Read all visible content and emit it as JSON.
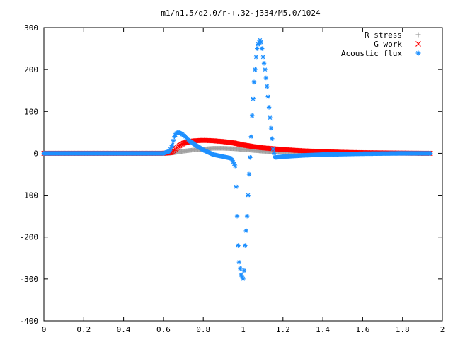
{
  "chart_data": {
    "type": "scatter",
    "title": "m1/n1.5/q2.0/r-+.32-j334/M5.0/1024",
    "xlabel": "",
    "ylabel": "",
    "xlim": [
      0,
      2
    ],
    "ylim": [
      -400,
      300
    ],
    "xticks": [
      "0",
      "0.2",
      "0.4",
      "0.6",
      "0.8",
      "1",
      "1.2",
      "1.4",
      "1.6",
      "1.8",
      "2"
    ],
    "yticks": [
      "-400",
      "-300",
      "-200",
      "-100",
      "0",
      "100",
      "200",
      "300"
    ],
    "grid": false,
    "legend": "top-right",
    "series": [
      {
        "name": "R stress",
        "marker": "plus",
        "color": "#a0a0a0",
        "points": [
          [
            0,
            0
          ],
          [
            0.2,
            0
          ],
          [
            0.4,
            0
          ],
          [
            0.6,
            0
          ],
          [
            0.63,
            0
          ],
          [
            0.66,
            2
          ],
          [
            0.7,
            5
          ],
          [
            0.75,
            8
          ],
          [
            0.8,
            10
          ],
          [
            0.85,
            12
          ],
          [
            0.9,
            12
          ],
          [
            0.95,
            11
          ],
          [
            1.0,
            9
          ],
          [
            1.05,
            7
          ],
          [
            1.1,
            5
          ],
          [
            1.2,
            3
          ],
          [
            1.3,
            2
          ],
          [
            1.4,
            1
          ],
          [
            1.6,
            0.5
          ],
          [
            1.8,
            0.2
          ],
          [
            1.94,
            0
          ]
        ]
      },
      {
        "name": "G work",
        "marker": "cross",
        "color": "#ff0000",
        "points": [
          [
            0,
            0
          ],
          [
            0.2,
            0
          ],
          [
            0.4,
            0
          ],
          [
            0.6,
            0
          ],
          [
            0.64,
            2
          ],
          [
            0.66,
            10
          ],
          [
            0.68,
            18
          ],
          [
            0.7,
            24
          ],
          [
            0.73,
            28
          ],
          [
            0.76,
            30
          ],
          [
            0.8,
            31
          ],
          [
            0.85,
            30
          ],
          [
            0.9,
            28
          ],
          [
            0.95,
            25
          ],
          [
            1.0,
            20
          ],
          [
            1.05,
            16
          ],
          [
            1.1,
            13
          ],
          [
            1.2,
            9
          ],
          [
            1.3,
            6
          ],
          [
            1.4,
            4
          ],
          [
            1.5,
            2.5
          ],
          [
            1.6,
            1.5
          ],
          [
            1.8,
            0.5
          ],
          [
            1.94,
            0
          ]
        ]
      },
      {
        "name": "Acoustic flux",
        "marker": "star",
        "color": "#1e90ff",
        "points": [
          [
            0,
            0
          ],
          [
            0.2,
            0
          ],
          [
            0.4,
            0
          ],
          [
            0.6,
            0
          ],
          [
            0.63,
            5
          ],
          [
            0.645,
            20
          ],
          [
            0.655,
            40
          ],
          [
            0.665,
            48
          ],
          [
            0.675,
            50
          ],
          [
            0.69,
            47
          ],
          [
            0.71,
            40
          ],
          [
            0.73,
            30
          ],
          [
            0.76,
            20
          ],
          [
            0.8,
            8
          ],
          [
            0.85,
            -3
          ],
          [
            0.9,
            -8
          ],
          [
            0.94,
            -12
          ],
          [
            0.96,
            -30
          ],
          [
            0.965,
            -80
          ],
          [
            0.97,
            -150
          ],
          [
            0.975,
            -220
          ],
          [
            0.98,
            -260
          ],
          [
            0.99,
            -290
          ],
          [
            1.0,
            -300
          ],
          [
            1.005,
            -280
          ],
          [
            1.01,
            -220
          ],
          [
            1.02,
            -150
          ],
          [
            1.025,
            -100
          ],
          [
            1.03,
            -50
          ],
          [
            1.035,
            -10
          ],
          [
            1.04,
            40
          ],
          [
            1.045,
            90
          ],
          [
            1.05,
            130
          ],
          [
            1.055,
            170
          ],
          [
            1.06,
            200
          ],
          [
            1.065,
            230
          ],
          [
            1.07,
            250
          ],
          [
            1.075,
            260
          ],
          [
            1.08,
            265
          ],
          [
            1.085,
            270
          ],
          [
            1.09,
            265
          ],
          [
            1.095,
            250
          ],
          [
            1.1,
            230
          ],
          [
            1.11,
            200
          ],
          [
            1.12,
            160
          ],
          [
            1.13,
            110
          ],
          [
            1.14,
            60
          ],
          [
            1.15,
            10
          ],
          [
            1.16,
            -10
          ],
          [
            1.2,
            -8
          ],
          [
            1.3,
            -5
          ],
          [
            1.4,
            -3
          ],
          [
            1.6,
            -1
          ],
          [
            1.8,
            0
          ],
          [
            1.94,
            0
          ]
        ]
      }
    ]
  }
}
